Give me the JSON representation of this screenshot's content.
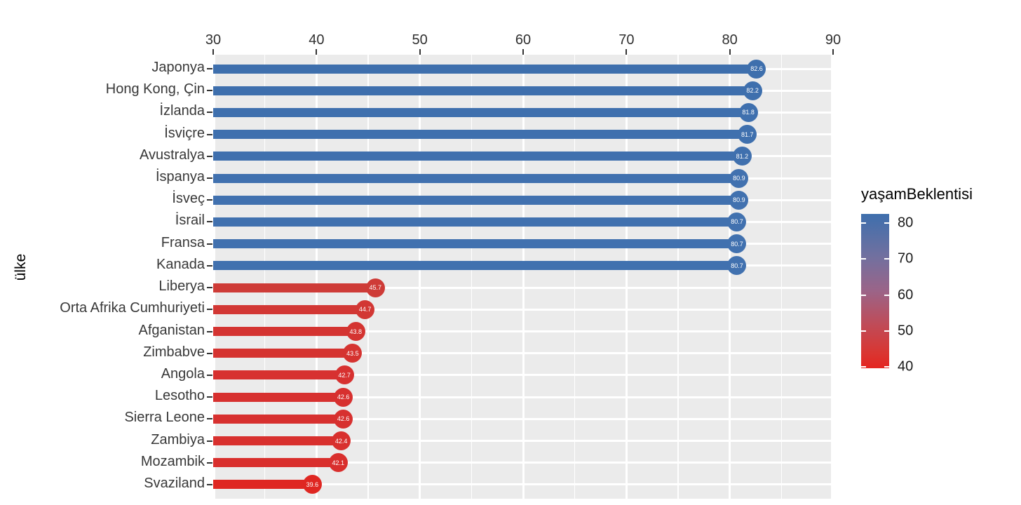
{
  "chart_data": {
    "type": "bar",
    "subtype": "horizontal-lollipop",
    "title": "",
    "xlabel": "",
    "ylabel": "ülke",
    "x_axis": {
      "min": 30,
      "max": 90,
      "major_ticks": [
        30,
        40,
        50,
        60,
        70,
        80,
        90
      ],
      "minor_ticks": [
        35,
        45,
        55,
        65,
        75,
        85
      ],
      "position": "top"
    },
    "grid": {
      "on": true,
      "color": "#FFFFFF",
      "panel_background": "#EBEBEB"
    },
    "categories": [
      "Japonya",
      "Hong Kong, Çin",
      "İzlanda",
      "İsviçre",
      "Avustralya",
      "İspanya",
      "İsveç",
      "İsrail",
      "Fransa",
      "Kanada",
      "Liberya",
      "Orta Afrika Cumhuriyeti",
      "Afganistan",
      "Zimbabve",
      "Angola",
      "Lesotho",
      "Sierra Leone",
      "Zambiya",
      "Mozambik",
      "Svaziland"
    ],
    "values": [
      82.6,
      82.2,
      81.8,
      81.7,
      81.2,
      80.9,
      80.9,
      80.7,
      80.7,
      80.7,
      45.7,
      44.7,
      43.8,
      43.5,
      42.7,
      42.6,
      42.6,
      42.4,
      42.1,
      39.6
    ],
    "value_labels": [
      "82.6",
      "82.2",
      "81.8",
      "81.7",
      "81.2",
      "80.9",
      "80.9",
      "80.7",
      "80.7",
      "80.7",
      "45.7",
      "44.7",
      "43.8",
      "43.5",
      "42.7",
      "42.6",
      "42.6",
      "42.4",
      "42.1",
      "39.6"
    ],
    "colors": [
      "#3E6FAD",
      "#3E6FAD",
      "#3F70AE",
      "#3F70AE",
      "#4070AE",
      "#4171AF",
      "#4171AF",
      "#4171AF",
      "#4171AF",
      "#4171AF",
      "#CE3B37",
      "#D23734",
      "#D43431",
      "#D53330",
      "#D73130",
      "#D7302F",
      "#D7302F",
      "#D8302E",
      "#D92F2D",
      "#DF2722"
    ],
    "legend": {
      "title": "yaşamBeklentisi",
      "position": "right",
      "tick_values": [
        80,
        70,
        60,
        50,
        40
      ],
      "tick_labels": [
        "80",
        "70",
        "60",
        "50",
        "40"
      ],
      "value_range": [
        39.6,
        82.6
      ],
      "gradient_stops": [
        {
          "pos": 0.0,
          "color": "#3E6FAD"
        },
        {
          "pos": 0.28,
          "color": "#72709F"
        },
        {
          "pos": 0.5,
          "color": "#9B6488"
        },
        {
          "pos": 0.72,
          "color": "#C04B57"
        },
        {
          "pos": 0.9,
          "color": "#D93632"
        },
        {
          "pos": 1.0,
          "color": "#E42520"
        }
      ]
    }
  }
}
